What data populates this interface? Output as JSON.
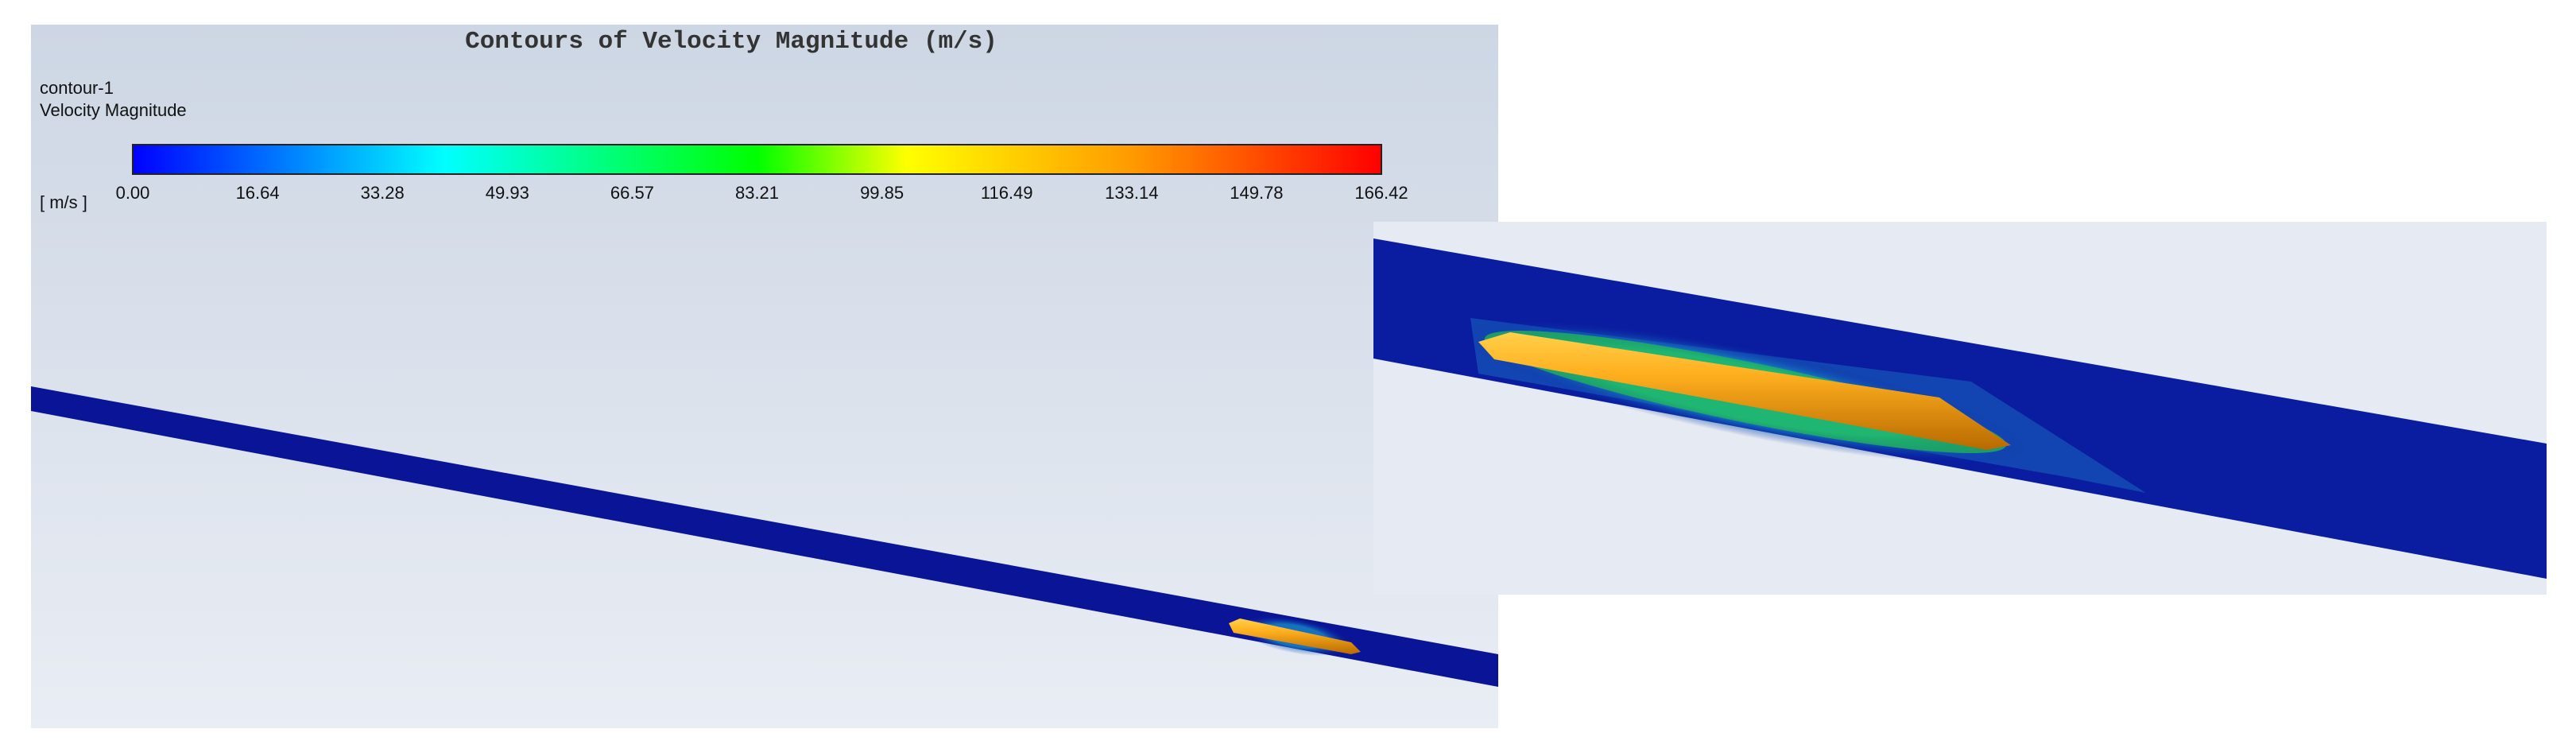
{
  "title": "Contours of Velocity Magnitude (m/s)",
  "legend": {
    "name": "contour-1",
    "quantity": "Velocity Magnitude",
    "unit": "[ m/s ]",
    "ticks": [
      "0.00",
      "16.64",
      "33.28",
      "49.93",
      "66.57",
      "83.21",
      "99.85",
      "116.49",
      "133.14",
      "149.78",
      "166.42"
    ]
  }
}
